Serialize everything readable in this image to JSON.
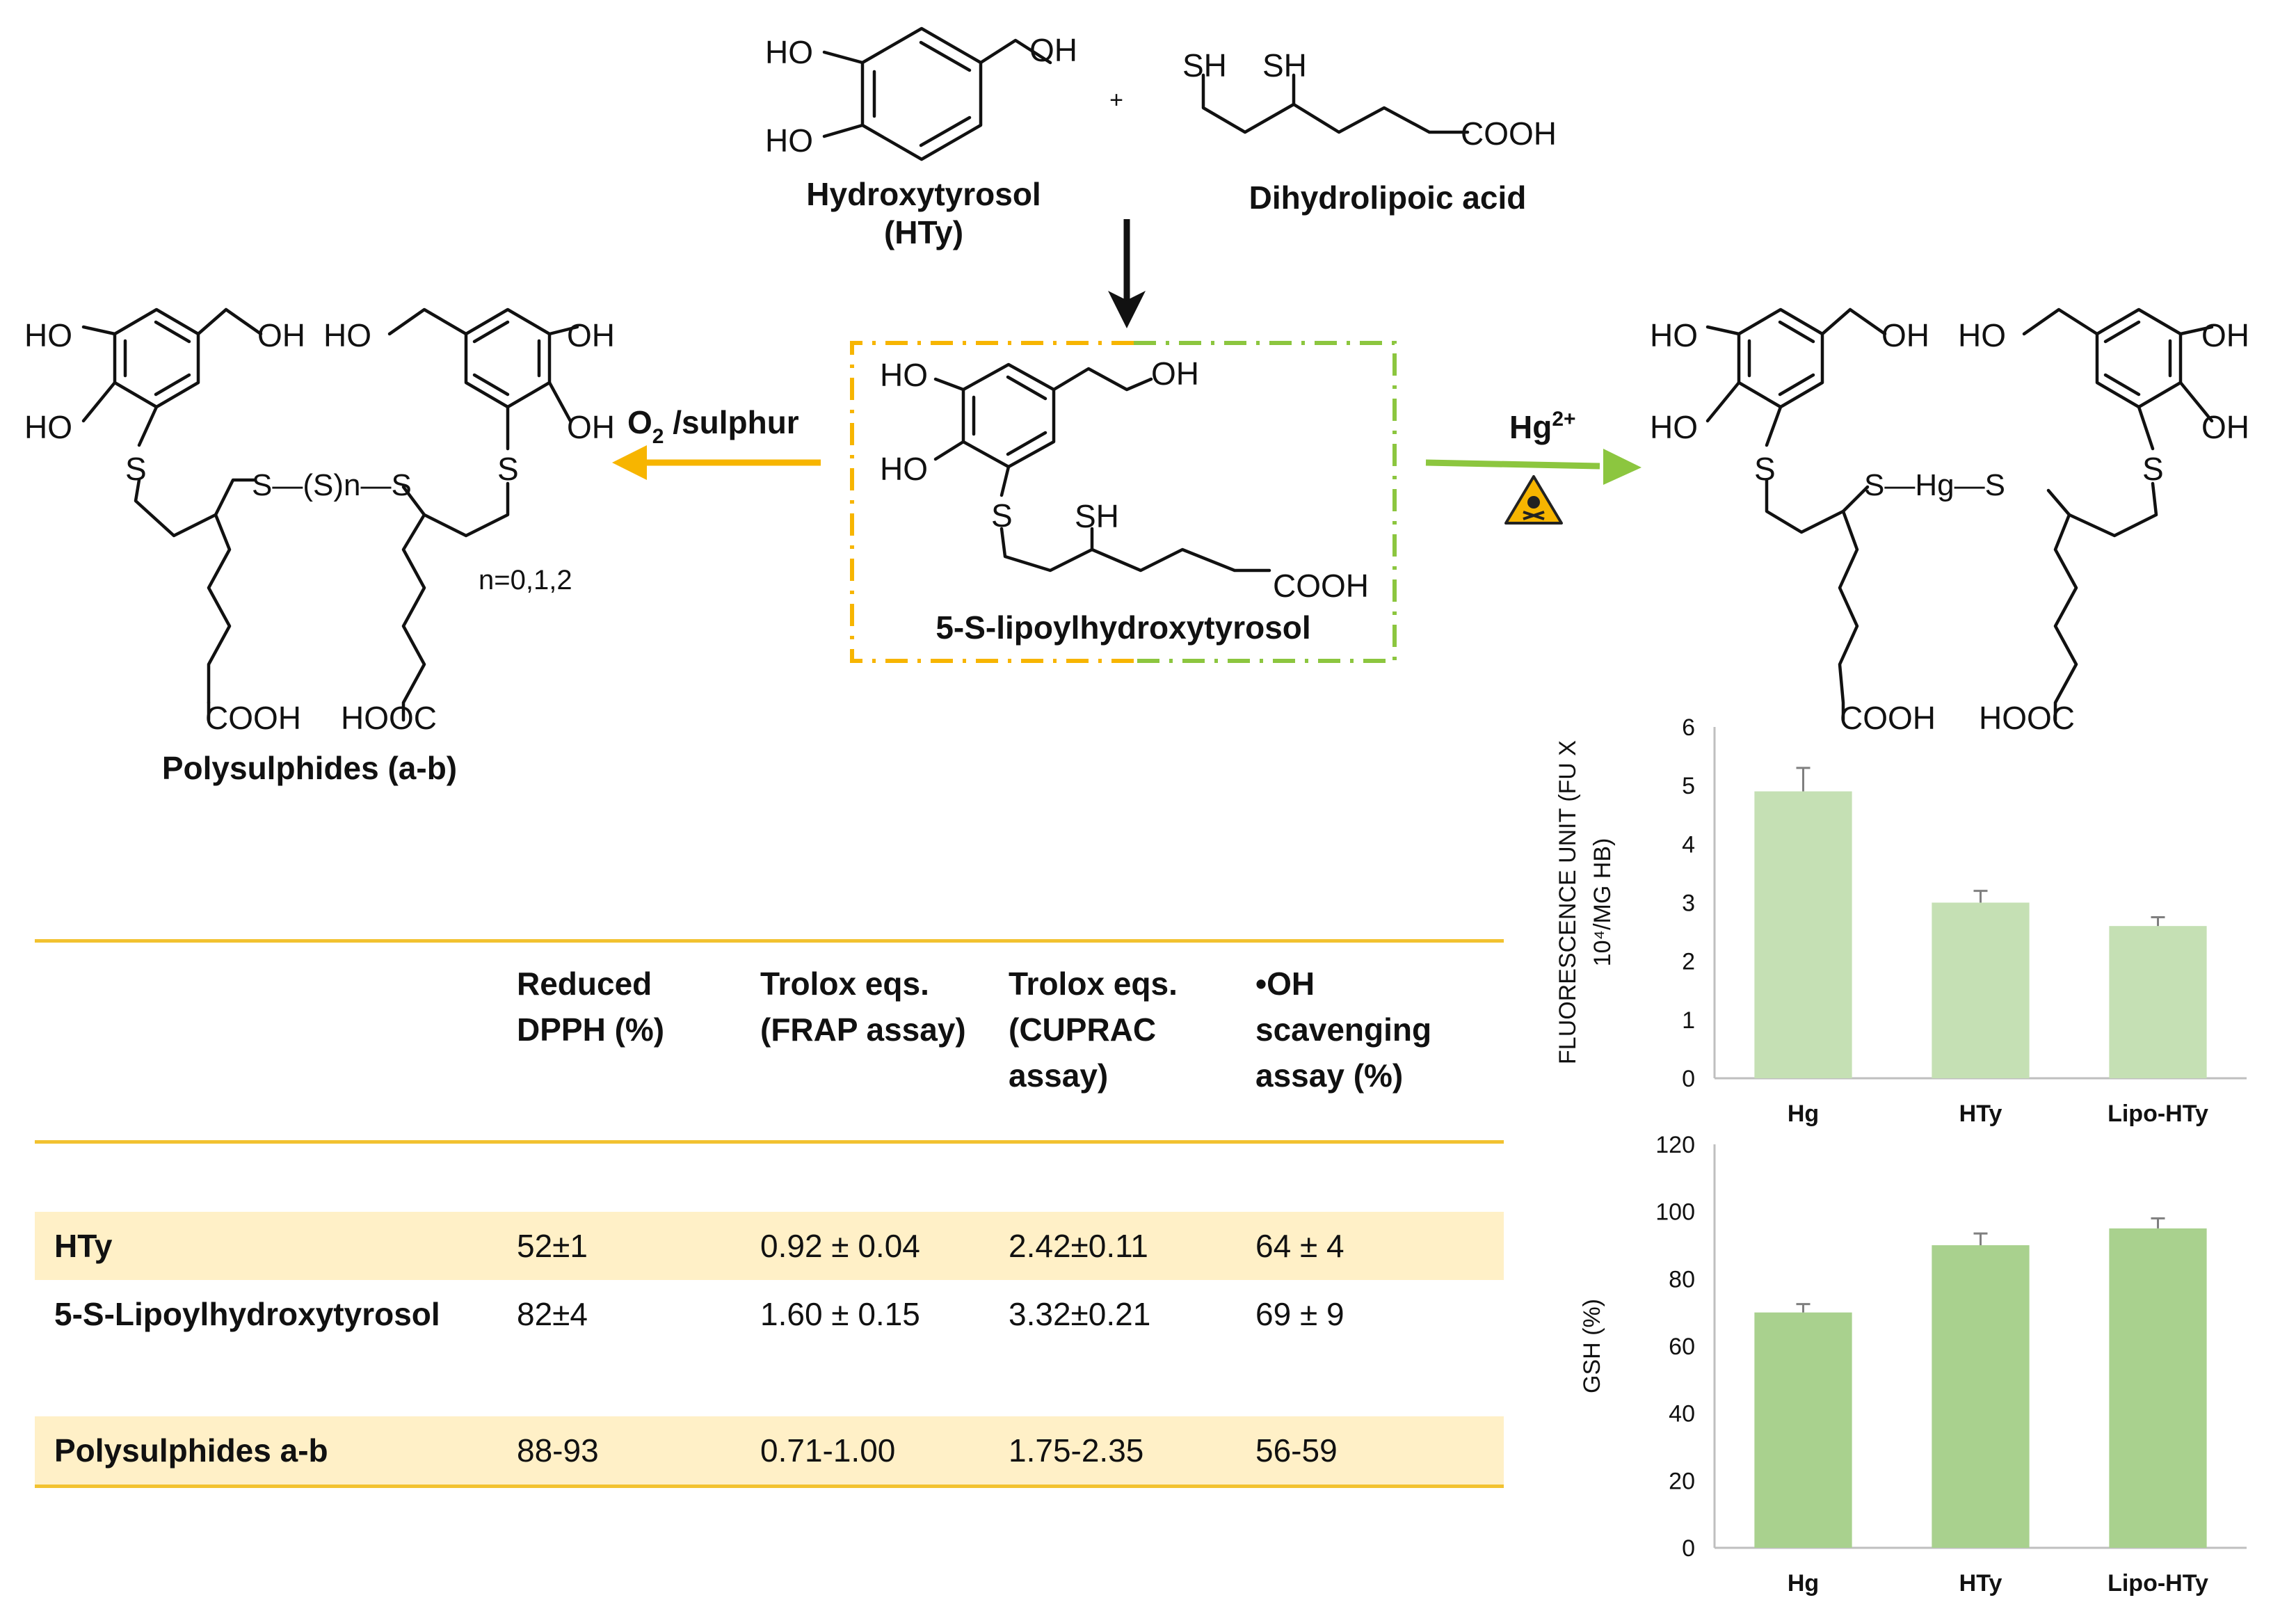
{
  "reactants": {
    "hty_name_line1": "Hydroxytyrosol",
    "hty_name_line2": "(HTy)",
    "dhla_name": "Dihydrolipoic acid",
    "plus": "+"
  },
  "atoms": {
    "ho": "HO",
    "oh": "OH",
    "sh": "SH",
    "s": "S",
    "cooh": "COOH",
    "hooc": "HOOC",
    "sn": "S—(S)n—S",
    "shgs": "S—Hg—S"
  },
  "center": {
    "name": "5-S-lipoylhydroxytyrosol"
  },
  "left_product": {
    "arrow_label": "O2 /sulphur",
    "n_values": "n=0,1,2",
    "name": "Polysulphides (a-b)"
  },
  "right_product": {
    "arrow_label": "Hg2+",
    "hazard_icon": "skull-crossbones-hazard-icon"
  },
  "table": {
    "columns": [
      "",
      "Reduced DPPH (%)",
      "Trolox eqs. (FRAP assay)",
      "Trolox eqs. (CUPRAC assay)",
      "•OH scavenging assay (%)"
    ],
    "header_lines": [
      [
        "Reduced",
        "DPPH (%)"
      ],
      [
        "Trolox eqs.",
        "(FRAP assay)"
      ],
      [
        "Trolox eqs.",
        "(CUPRAC",
        "assay)"
      ],
      [
        "•OH",
        "scavenging",
        "assay (%)"
      ]
    ],
    "rows": [
      {
        "name": "HTy",
        "values": [
          "52±1",
          "0.92 ± 0.04",
          "2.42±0.11",
          "64 ± 4"
        ]
      },
      {
        "name": "5-S-Lipoylhydroxytyrosol",
        "values": [
          "82±4",
          "1.60 ± 0.15",
          "3.32±0.21",
          "69 ± 9"
        ]
      },
      {
        "name": "Polysulphides a-b",
        "values": [
          "88-93",
          "0.71-1.00",
          "1.75-2.35",
          "56-59"
        ]
      }
    ]
  },
  "colors": {
    "yellow": "#f7b500",
    "green": "#8cc63f",
    "table_line": "#f2c230",
    "table_highlight": "#fff0c7",
    "bar_light": "#c5e0b4",
    "bar_dark": "#a9d18e"
  },
  "chart_data": [
    {
      "type": "bar",
      "title": "",
      "ylabel_line1": "FLUORESCENCE UNIT (FU X",
      "ylabel_line2": "10⁴/MG HB)",
      "ylabel": "FLUORESCENCE UNIT (FU X 10⁴/MG HB)",
      "categories": [
        "Hg",
        "HTy",
        "Lipo-HTy"
      ],
      "values": [
        4.9,
        3.0,
        2.6
      ],
      "errors": [
        0.4,
        0.2,
        0.15
      ],
      "ylim": [
        0,
        6
      ],
      "yticks": [
        "0",
        "1",
        "2",
        "3",
        "4",
        "5",
        "6"
      ],
      "color": "#c5e0b4"
    },
    {
      "type": "bar",
      "title": "",
      "ylabel": "GSH (%)",
      "categories": [
        "Hg",
        "HTy",
        "Lipo-HTy"
      ],
      "values": [
        70,
        90,
        95
      ],
      "errors": [
        2.5,
        3.5,
        3.0
      ],
      "ylim": [
        0,
        120
      ],
      "yticks": [
        "0",
        "20",
        "40",
        "60",
        "80",
        "100",
        "120"
      ],
      "color": "#a9d18e"
    }
  ]
}
